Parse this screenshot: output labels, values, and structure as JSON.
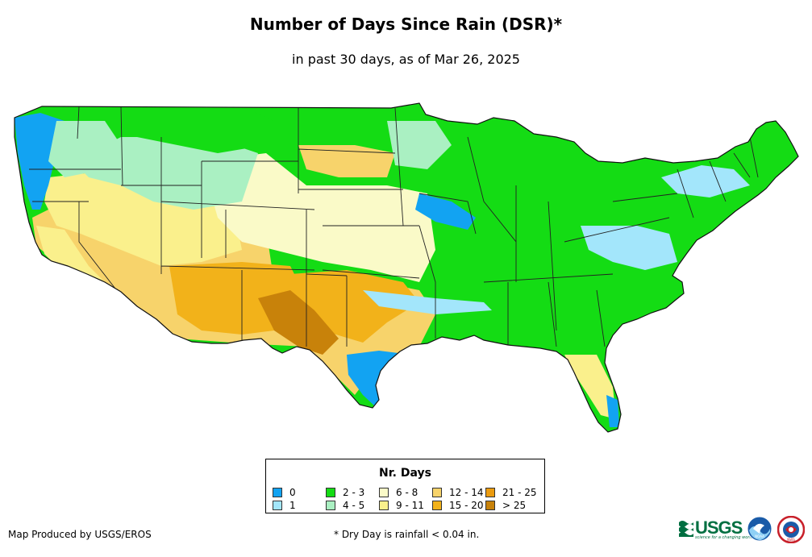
{
  "title": "Number of Days Since Rain (DSR)*",
  "subtitle": "in past 30 days, as of Mar 26, 2025",
  "legend": {
    "title": "Nr. Days",
    "items": [
      {
        "label": "0",
        "color": "#12a3f2"
      },
      {
        "label": "1",
        "color": "#a3e6fb"
      },
      {
        "label": "2 - 3",
        "color": "#14dc14"
      },
      {
        "label": "4 - 5",
        "color": "#aaf0c2"
      },
      {
        "label": "6 - 8",
        "color": "#fafac8"
      },
      {
        "label": "9 - 11",
        "color": "#faf08c"
      },
      {
        "label": "12 - 14",
        "color": "#f7d36b"
      },
      {
        "label": "15 - 20",
        "color": "#f2b21a"
      },
      {
        "label": "21 - 25",
        "color": "#eb9b0f"
      },
      {
        "label": "> 25",
        "color": "#c8820a"
      }
    ]
  },
  "credit": "Map Produced by USGS/EROS",
  "footnote": "* Dry Day is rainfall < 0.04 in.",
  "logos": {
    "usgs_text": "USGS",
    "usgs_tagline": "science for a changing world",
    "noaa_text": "NOAA",
    "nws_text": "NWS"
  }
}
